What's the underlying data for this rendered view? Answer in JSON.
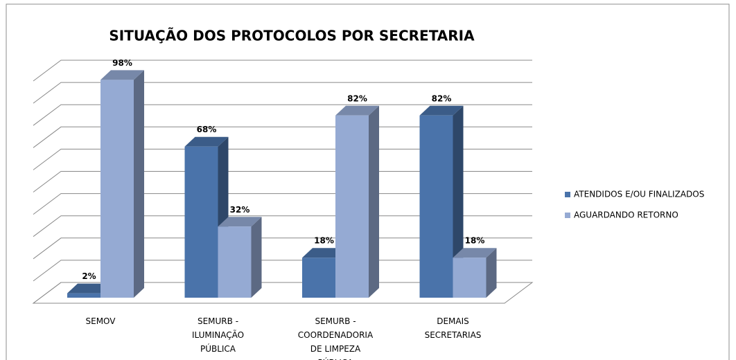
{
  "chart_data": {
    "type": "bar3d",
    "title": "SITUAÇÃO DOS PROTOCOLOS POR SECRETARIA",
    "categories": [
      "SEMOV",
      "SEMURB - ILUMINAÇÃO PÚBLICA",
      "SEMURB - COORDENADORIA DE LIMPEZA PÚBLICA",
      "DEMAIS SECRETARIAS"
    ],
    "series": [
      {
        "name": "ATENDIDOS E/OU FINALIZADOS",
        "color": "#4a73aa",
        "values": [
          2,
          68,
          18,
          82
        ],
        "value_labels": [
          "2%",
          "68%",
          "18%",
          "82%"
        ]
      },
      {
        "name": "AGUARDANDO RETORNO",
        "color": "#95aad3",
        "values": [
          98,
          32,
          82,
          18
        ],
        "value_labels": [
          "98%",
          "32%",
          "82%",
          "18%"
        ]
      }
    ],
    "ylim": [
      0,
      100
    ],
    "yticks": [
      0,
      10,
      20,
      30,
      40,
      50,
      60,
      70,
      80,
      90,
      100
    ],
    "grid": true,
    "legend": "right"
  }
}
